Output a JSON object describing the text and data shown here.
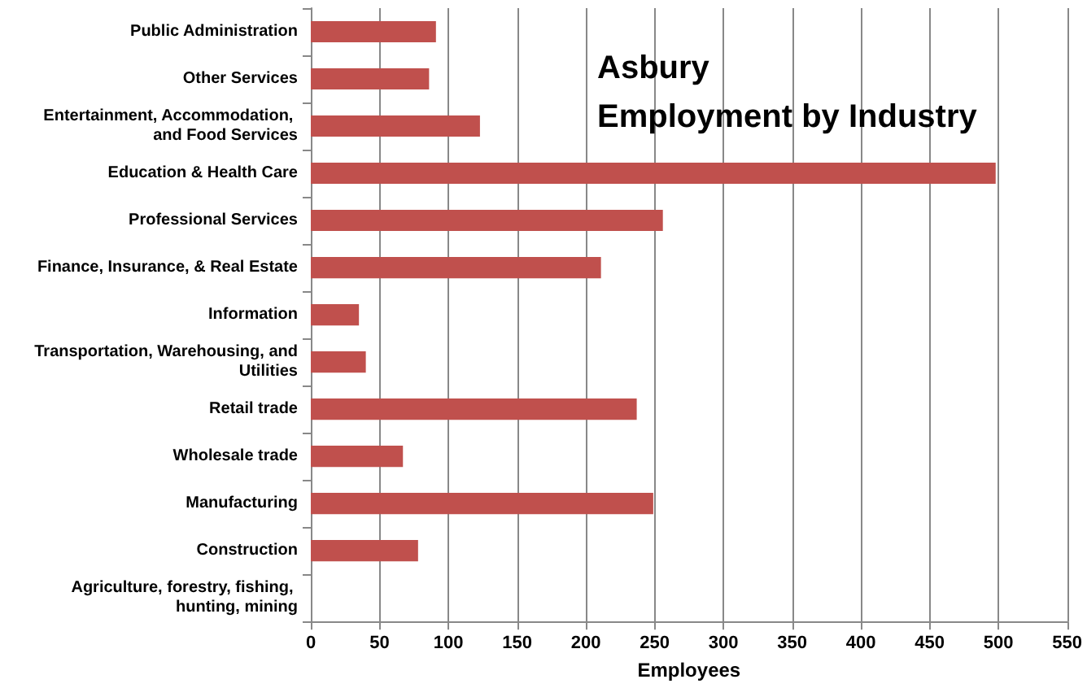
{
  "chart_data": {
    "type": "bar",
    "orientation": "horizontal",
    "title": "Asbury\nEmployment by Industry",
    "xlabel": "Employees",
    "categories": [
      "Public Administration",
      "Other Services",
      "Entertainment, Accommodation, and Food Services",
      "Education & Health Care",
      "Professional Services",
      "Finance, Insurance, & Real Estate",
      "Information",
      "Transportation, Warehousing, and Utilities",
      "Retail trade",
      "Wholesale trade",
      "Manufacturing",
      "Construction",
      "Agriculture, forestry, fishing, hunting, mining"
    ],
    "values": [
      91,
      86,
      123,
      498,
      256,
      211,
      35,
      40,
      237,
      67,
      249,
      78,
      0
    ],
    "color": "#c0504d",
    "xlim": [
      0,
      550
    ],
    "xticks": [
      0,
      50,
      100,
      150,
      200,
      250,
      300,
      350,
      400,
      450,
      500,
      550
    ],
    "grid": "x"
  }
}
